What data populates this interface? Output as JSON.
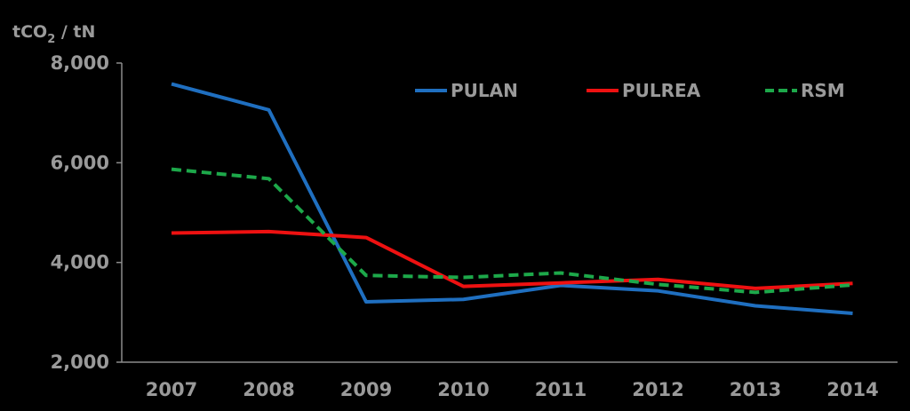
{
  "chart_data": {
    "type": "line",
    "title": "",
    "ylabel": "tCO2 / tN",
    "ylabel_parts": {
      "pre": "tCO",
      "sub": "2",
      "post": " / tN"
    },
    "xlabel": "",
    "categories": [
      "2007",
      "2008",
      "2009",
      "2010",
      "2011",
      "2012",
      "2013",
      "2014"
    ],
    "ylim": [
      2000,
      8000
    ],
    "yticks": [
      2000,
      4000,
      6000,
      8000
    ],
    "ytick_labels": [
      "2,000",
      "4,000",
      "6,000",
      "8,000"
    ],
    "grid": false,
    "legend_position": "top-right",
    "series": [
      {
        "name": "PULAN",
        "color": "#1f6fc0",
        "style": "solid",
        "values": [
          7580,
          7060,
          3210,
          3260,
          3540,
          3430,
          3130,
          2980
        ]
      },
      {
        "name": "PULREA",
        "color": "#ee1111",
        "style": "solid",
        "values": [
          4590,
          4620,
          4500,
          3520,
          3590,
          3660,
          3480,
          3580
        ]
      },
      {
        "name": "RSM",
        "color": "#1da84a",
        "style": "dashed",
        "values": [
          5870,
          5680,
          3740,
          3700,
          3790,
          3560,
          3400,
          3550
        ]
      }
    ]
  }
}
